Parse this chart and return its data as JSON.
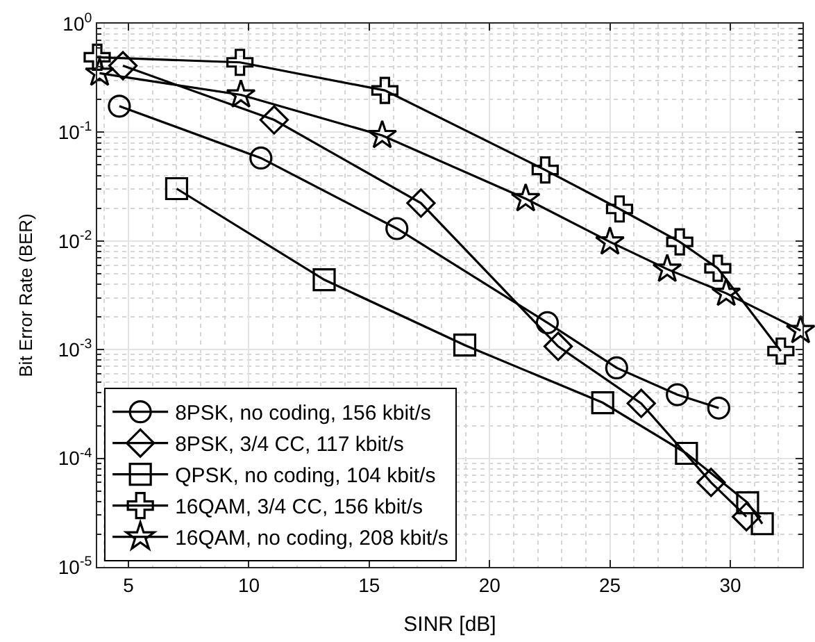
{
  "chart_data": {
    "type": "line",
    "xlabel": "SINR [dB]",
    "ylabel": "Bit Error Rate (BER)",
    "xlim": [
      3.7,
      33
    ],
    "xticks": [
      5,
      10,
      15,
      20,
      25,
      30
    ],
    "ylim": [
      1e-05,
      1
    ],
    "log": "y",
    "yticks": [
      {
        "value": 1,
        "label": "10$^{0}$"
      },
      {
        "value": 0.1,
        "label": "10$^{-1}$"
      },
      {
        "value": 0.01,
        "label": "10$^{-2}$"
      },
      {
        "value": 0.001,
        "label": "10$^{-3}$"
      },
      {
        "value": 0.0001,
        "label": "10$^{-4}$"
      },
      {
        "value": 1e-05,
        "label": "10$^{-5}$"
      }
    ],
    "grid": true,
    "legend": "bottom left",
    "line_style": "solid",
    "series": [
      {
        "name": "8PSK, no coding, 156 kbit/s",
        "color": "#000000",
        "marker": "circle",
        "x": [
          4.62,
          10.5,
          16.15,
          22.4,
          25.28,
          27.8,
          29.52
        ],
        "values": [
          0.174,
          0.058,
          0.013,
          0.00177,
          0.00068,
          0.000385,
          0.00029
        ]
      },
      {
        "name": "8PSK, 3/4 CC, 117 kbit/s",
        "color": "#000000",
        "marker": "diamond",
        "x": [
          4.77,
          11.05,
          17.15,
          22.85,
          26.3,
          29.2,
          30.67
        ],
        "values": [
          0.41,
          0.13,
          0.0223,
          0.00107,
          0.00032,
          6e-05,
          2.9e-05
        ]
      },
      {
        "name": "QPSK, no coding, 104 kbit/s",
        "color": "#000000",
        "marker": "square",
        "x": [
          7.0,
          13.13,
          18.97,
          24.7,
          28.18,
          30.72,
          31.33
        ],
        "values": [
          0.0303,
          0.0044,
          0.0011,
          0.000325,
          0.000111,
          3.9e-05,
          2.5e-05
        ]
      },
      {
        "name": "16QAM, 3/4 CC, 156 kbit/s",
        "color": "#000000",
        "marker": "cross",
        "x": [
          3.7,
          9.63,
          15.65,
          22.31,
          25.4,
          27.9,
          29.48,
          32.1
        ],
        "values": [
          0.49,
          0.44,
          0.243,
          0.045,
          0.0197,
          0.0098,
          0.0056,
          0.00097
        ]
      },
      {
        "name": "16QAM, no coding, 208 kbit/s",
        "color": "#000000",
        "marker": "star",
        "x": [
          3.8,
          9.67,
          15.54,
          21.5,
          25.0,
          27.38,
          29.83,
          32.92
        ],
        "values": [
          0.35,
          0.221,
          0.0935,
          0.0245,
          0.0098,
          0.0055,
          0.0033,
          0.0015
        ]
      }
    ]
  }
}
